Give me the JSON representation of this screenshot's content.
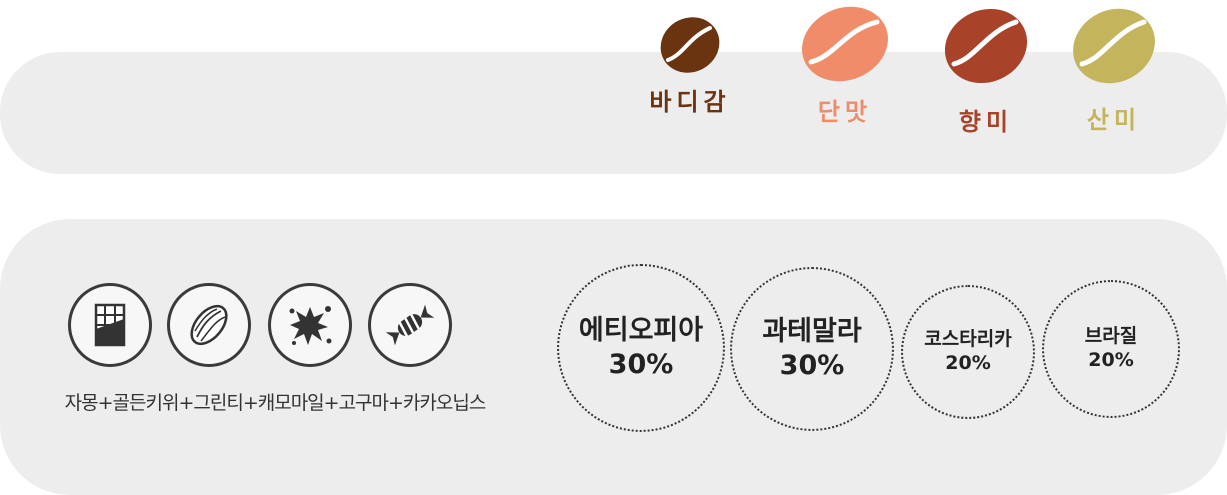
{
  "legend": {
    "items": [
      {
        "label": "바디감",
        "color": "#6b3410",
        "icon": "coffee-bean-icon"
      },
      {
        "label": "단맛",
        "color": "#f08c6a",
        "icon": "coffee-bean-icon"
      },
      {
        "label": "향미",
        "color": "#a8432a",
        "icon": "coffee-bean-icon"
      },
      {
        "label": "산미",
        "color": "#c4b45c",
        "icon": "coffee-bean-icon"
      }
    ]
  },
  "flavors": {
    "icons": [
      "chocolate-icon",
      "almond-icon",
      "splash-icon",
      "candy-icon"
    ],
    "caption": "자몽+골든키위+그린티+캐모마일+고구마+카카오닙스"
  },
  "origins": [
    {
      "name": "에티오피아",
      "percent": "30%"
    },
    {
      "name": "과테말라",
      "percent": "30%"
    },
    {
      "name": "코스타리카",
      "percent": "20%"
    },
    {
      "name": "브라질",
      "percent": "20%"
    }
  ]
}
